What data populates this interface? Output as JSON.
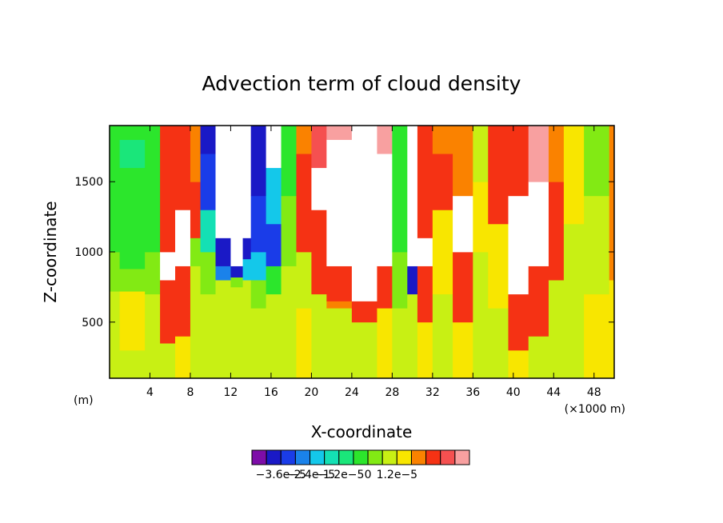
{
  "chart_data": {
    "type": "heatmap",
    "title": "Advection term of cloud density",
    "xlabel": "X-coordinate",
    "ylabel": "Z-coordinate",
    "x_unit_left": "(m)",
    "x_unit_right": "(×1000 m)",
    "xlim": [
      0,
      50
    ],
    "ylim": [
      100,
      1900
    ],
    "x_ticks": [
      4,
      8,
      12,
      16,
      20,
      24,
      28,
      32,
      36,
      40,
      44,
      48
    ],
    "x_tick_labels": [
      "4",
      "8",
      "12",
      "16",
      "20",
      "24",
      "28",
      "32",
      "36",
      "40",
      "44",
      "48"
    ],
    "y_ticks": [
      500,
      1000,
      1500
    ],
    "y_tick_labels": [
      "500",
      "1000",
      "1500"
    ],
    "colorbar": {
      "colors": [
        "#7d0da8",
        "#1a19c6",
        "#1a3ce8",
        "#1a82ea",
        "#14c8ea",
        "#14e0b4",
        "#1ae67a",
        "#2ce62c",
        "#82ea14",
        "#c8f014",
        "#f8e600",
        "#fa8200",
        "#f53214",
        "#f55050",
        "#f8a0a0"
      ],
      "tick_labels": [
        "−3.6e−5",
        "−2.4e−5",
        "−1.2e−5",
        "0",
        "1.2e−5"
      ],
      "tick_values": [
        -3.6e-05,
        -2.4e-05,
        -1.2e-05,
        0,
        1.2e-05
      ],
      "levels": [
        -4.2e-05,
        -3.6e-05,
        -3e-05,
        -2.4e-05,
        -1.8e-05,
        -1.2e-05,
        -6e-06,
        0,
        6e-06,
        1.2e-05,
        1.8e-05,
        2.4e-05,
        3e-05,
        3.6e-05
      ]
    },
    "columns": [
      {
        "x": [
          0,
          1
        ],
        "layers": [
          [
            "#c8f014",
            100,
            720
          ],
          [
            "#82ea14",
            720,
            1000
          ],
          [
            "#2ce62c",
            1000,
            1900
          ]
        ]
      },
      {
        "x": [
          1,
          3.5
        ],
        "layers": [
          [
            "#c8f014",
            100,
            300
          ],
          [
            "#f8e600",
            300,
            720
          ],
          [
            "#82ea14",
            720,
            880
          ],
          [
            "#2ce62c",
            880,
            1600
          ],
          [
            "#1ae67a",
            1600,
            1800
          ],
          [
            "#2ce62c",
            1800,
            1900
          ]
        ]
      },
      {
        "x": [
          3.5,
          5
        ],
        "layers": [
          [
            "#c8f014",
            100,
            700
          ],
          [
            "#82ea14",
            700,
            1000
          ],
          [
            "#2ce62c",
            1000,
            1900
          ]
        ]
      },
      {
        "x": [
          5,
          6.5
        ],
        "layers": [
          [
            "#c8f014",
            100,
            350
          ],
          [
            "#f53214",
            350,
            800
          ],
          [
            "#ffffff",
            800,
            1000
          ],
          [
            "#f53214",
            1000,
            1900
          ]
        ]
      },
      {
        "x": [
          6.5,
          8
        ],
        "layers": [
          [
            "#f8e600",
            100,
            400
          ],
          [
            "#f53214",
            400,
            900
          ],
          [
            "#ffffff",
            900,
            1300
          ],
          [
            "#f53214",
            1300,
            1900
          ]
        ]
      },
      {
        "x": [
          8,
          9
        ],
        "layers": [
          [
            "#c8f014",
            100,
            900
          ],
          [
            "#82ea14",
            900,
            1100
          ],
          [
            "#f53214",
            1100,
            1500
          ],
          [
            "#fa8200",
            1500,
            1900
          ]
        ]
      },
      {
        "x": [
          9,
          10.5
        ],
        "layers": [
          [
            "#c8f014",
            100,
            700
          ],
          [
            "#82ea14",
            700,
            1000
          ],
          [
            "#14e0b4",
            1000,
            1300
          ],
          [
            "#1a3ce8",
            1300,
            1700
          ],
          [
            "#1a19c6",
            1700,
            1900
          ]
        ]
      },
      {
        "x": [
          10.5,
          12
        ],
        "layers": [
          [
            "#c8f014",
            100,
            800
          ],
          [
            "#1a82ea",
            800,
            900
          ],
          [
            "#1a19c6",
            900,
            1100
          ],
          [
            "#ffffff",
            1100,
            1900
          ]
        ]
      },
      {
        "x": [
          12,
          13.2
        ],
        "layers": [
          [
            "#c8f014",
            100,
            750
          ],
          [
            "#82ea14",
            750,
            820
          ],
          [
            "#1a19c6",
            820,
            900
          ],
          [
            "#ffffff",
            900,
            1900
          ]
        ]
      },
      {
        "x": [
          13.2,
          14
        ],
        "layers": [
          [
            "#c8f014",
            100,
            800
          ],
          [
            "#14c8ea",
            800,
            950
          ],
          [
            "#1a19c6",
            950,
            1100
          ],
          [
            "#ffffff",
            1100,
            1900
          ]
        ]
      },
      {
        "x": [
          14,
          15.5
        ],
        "layers": [
          [
            "#c8f014",
            100,
            600
          ],
          [
            "#82ea14",
            600,
            800
          ],
          [
            "#14c8ea",
            800,
            1000
          ],
          [
            "#1a3ce8",
            1000,
            1400
          ],
          [
            "#1a19c6",
            1400,
            1900
          ]
        ]
      },
      {
        "x": [
          15.5,
          17
        ],
        "layers": [
          [
            "#c8f014",
            100,
            700
          ],
          [
            "#2ce62c",
            700,
            900
          ],
          [
            "#1a3ce8",
            900,
            1200
          ],
          [
            "#14c8ea",
            1200,
            1600
          ],
          [
            "#ffffff",
            1600,
            1900
          ]
        ]
      },
      {
        "x": [
          17,
          18.5
        ],
        "layers": [
          [
            "#c8f014",
            100,
            900
          ],
          [
            "#82ea14",
            900,
            1400
          ],
          [
            "#2ce62c",
            1400,
            1900
          ]
        ]
      },
      {
        "x": [
          18.5,
          20
        ],
        "layers": [
          [
            "#f8e600",
            100,
            600
          ],
          [
            "#c8f014",
            600,
            1000
          ],
          [
            "#f53214",
            1000,
            1700
          ],
          [
            "#fa8200",
            1700,
            1900
          ]
        ]
      },
      {
        "x": [
          20,
          21.5
        ],
        "layers": [
          [
            "#c8f014",
            100,
            700
          ],
          [
            "#f53214",
            700,
            1300
          ],
          [
            "#ffffff",
            1300,
            1600
          ],
          [
            "#f55050",
            1600,
            1900
          ]
        ]
      },
      {
        "x": [
          21.5,
          24
        ],
        "layers": [
          [
            "#c8f014",
            100,
            600
          ],
          [
            "#fa8200",
            600,
            650
          ],
          [
            "#f53214",
            650,
            900
          ],
          [
            "#ffffff",
            900,
            1800
          ],
          [
            "#f8a0a0",
            1800,
            1900
          ]
        ]
      },
      {
        "x": [
          24,
          26.5
        ],
        "layers": [
          [
            "#c8f014",
            100,
            500
          ],
          [
            "#f53214",
            500,
            650
          ],
          [
            "#ffffff",
            650,
            1900
          ]
        ]
      },
      {
        "x": [
          26.5,
          28
        ],
        "layers": [
          [
            "#f8e600",
            100,
            600
          ],
          [
            "#f53214",
            600,
            900
          ],
          [
            "#ffffff",
            900,
            1700
          ],
          [
            "#f8a0a0",
            1700,
            1900
          ]
        ]
      },
      {
        "x": [
          28,
          29.5
        ],
        "layers": [
          [
            "#c8f014",
            100,
            600
          ],
          [
            "#82ea14",
            600,
            1000
          ],
          [
            "#2ce62c",
            1000,
            1900
          ]
        ]
      },
      {
        "x": [
          29.5,
          30.5
        ],
        "layers": [
          [
            "#c8f014",
            100,
            700
          ],
          [
            "#1a19c6",
            700,
            900
          ],
          [
            "#ffffff",
            900,
            1900
          ]
        ]
      },
      {
        "x": [
          30.5,
          32
        ],
        "layers": [
          [
            "#f8e600",
            100,
            500
          ],
          [
            "#f53214",
            500,
            900
          ],
          [
            "#ffffff",
            900,
            1100
          ],
          [
            "#f53214",
            1100,
            1900
          ]
        ]
      },
      {
        "x": [
          32,
          34
        ],
        "layers": [
          [
            "#c8f014",
            100,
            700
          ],
          [
            "#f8e600",
            700,
            1300
          ],
          [
            "#f53214",
            1300,
            1700
          ],
          [
            "#fa8200",
            1700,
            1900
          ]
        ]
      },
      {
        "x": [
          34,
          36
        ],
        "layers": [
          [
            "#f8e600",
            100,
            500
          ],
          [
            "#f53214",
            500,
            1000
          ],
          [
            "#ffffff",
            1000,
            1400
          ],
          [
            "#fa8200",
            1400,
            1900
          ]
        ]
      },
      {
        "x": [
          36,
          37.5
        ],
        "layers": [
          [
            "#c8f014",
            100,
            1000
          ],
          [
            "#f8e600",
            1000,
            1500
          ],
          [
            "#c8f014",
            1500,
            1900
          ]
        ]
      },
      {
        "x": [
          37.5,
          39.5
        ],
        "layers": [
          [
            "#c8f014",
            100,
            600
          ],
          [
            "#f8e600",
            600,
            1200
          ],
          [
            "#f53214",
            1200,
            1900
          ]
        ]
      },
      {
        "x": [
          39.5,
          41.5
        ],
        "layers": [
          [
            "#f8e600",
            100,
            300
          ],
          [
            "#f53214",
            300,
            700
          ],
          [
            "#ffffff",
            700,
            1400
          ],
          [
            "#f53214",
            1400,
            1900
          ]
        ]
      },
      {
        "x": [
          41.5,
          43.5
        ],
        "layers": [
          [
            "#c8f014",
            100,
            400
          ],
          [
            "#f53214",
            400,
            900
          ],
          [
            "#ffffff",
            900,
            1500
          ],
          [
            "#f8a0a0",
            1500,
            1900
          ]
        ]
      },
      {
        "x": [
          43.5,
          45
        ],
        "layers": [
          [
            "#c8f014",
            100,
            800
          ],
          [
            "#f53214",
            800,
            1500
          ],
          [
            "#fa8200",
            1500,
            1900
          ]
        ]
      },
      {
        "x": [
          45,
          47
        ],
        "layers": [
          [
            "#c8f014",
            100,
            1200
          ],
          [
            "#f8e600",
            1200,
            1900
          ]
        ]
      },
      {
        "x": [
          47,
          49.5
        ],
        "layers": [
          [
            "#f8e600",
            100,
            700
          ],
          [
            "#c8f014",
            700,
            1400
          ],
          [
            "#82ea14",
            1400,
            1900
          ]
        ]
      },
      {
        "x": [
          49.5,
          50
        ],
        "layers": [
          [
            "#f8e600",
            100,
            800
          ],
          [
            "#fa8200",
            800,
            1900
          ]
        ]
      }
    ]
  }
}
